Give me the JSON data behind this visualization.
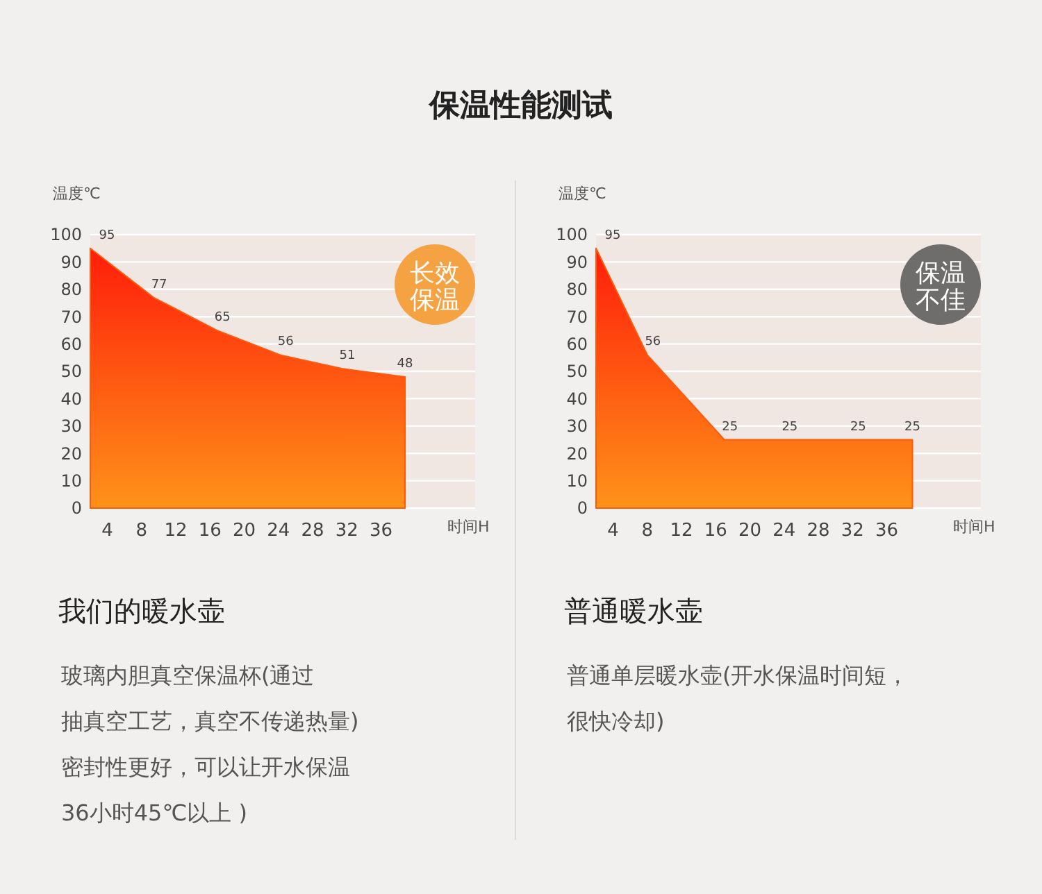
{
  "chart_data": [
    {
      "type": "area",
      "title": "保温性能测试",
      "subtitle": "我们的暖水壶",
      "xlabel": "时间H",
      "ylabel": "温度℃",
      "xlim": [
        2,
        47
      ],
      "xticks": [
        4,
        8,
        12,
        16,
        20,
        24,
        28,
        32,
        36
      ],
      "ylim": [
        0,
        100
      ],
      "yticks": [
        0,
        10,
        20,
        30,
        40,
        50,
        60,
        70,
        80,
        90,
        100
      ],
      "grid": "y",
      "data_labels": true,
      "series": [
        {
          "color": "#ff5a0a",
          "x": [
            2,
            9.4,
            16.8,
            24.2,
            31.4,
            38.8
          ],
          "values": [
            95,
            77,
            65,
            56,
            51,
            48
          ]
        }
      ],
      "annotations": [
        "长效保温",
        "玻璃内胆真空保温杯(通过",
        "抽真空工艺，真空不传递热量)",
        "密封性更好，可以让开水保温",
        "36小时45℃以上 )"
      ]
    },
    {
      "type": "area",
      "subtitle": "普通暖水壶",
      "xlabel": "时间H",
      "ylabel": "温度℃",
      "xlim": [
        2,
        47
      ],
      "xticks": [
        4,
        8,
        12,
        16,
        20,
        24,
        28,
        32,
        36
      ],
      "ylim": [
        0,
        100
      ],
      "yticks": [
        0,
        10,
        20,
        30,
        40,
        50,
        60,
        70,
        80,
        90,
        100
      ],
      "grid": "y",
      "data_labels": true,
      "series": [
        {
          "color": "#ff5a0a",
          "x": [
            2,
            8,
            17,
            24,
            32,
            39
          ],
          "values": [
            95,
            56,
            25,
            25,
            25,
            25
          ]
        }
      ],
      "annotations": [
        "保温不佳",
        "普通单层暖水壶(开水保温时间短，",
        "很快冷却)"
      ]
    }
  ]
}
